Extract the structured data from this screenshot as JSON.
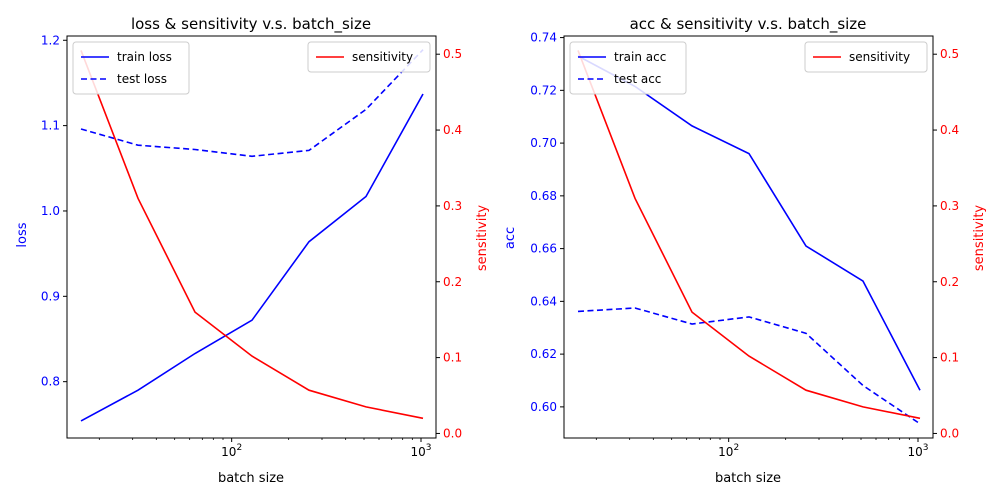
{
  "chart_data": [
    {
      "type": "line",
      "title": "loss & sensitivity v.s. batch_size",
      "xlabel": "batch size",
      "ylabel": "loss",
      "y2label": "sensitivity",
      "xscale": "log",
      "xlim": [
        13.5,
        1200
      ],
      "ylim": [
        0.734,
        1.205
      ],
      "y2lim": [
        -0.006,
        0.524
      ],
      "x": [
        16,
        32,
        64,
        128,
        256,
        512,
        1024
      ],
      "xticks": [
        {
          "value": 100,
          "base": "10",
          "exp": "2"
        },
        {
          "value": 1000,
          "base": "10",
          "exp": "3"
        }
      ],
      "yticks": [
        "0.8",
        "0.9",
        "1.0",
        "1.1",
        "1.2"
      ],
      "y2ticks": [
        "0.0",
        "0.1",
        "0.2",
        "0.3",
        "0.4",
        "0.5"
      ],
      "series": [
        {
          "name": "train loss",
          "axis": "left",
          "style": "solid",
          "color": "#0000ff",
          "values": [
            0.754,
            0.79,
            0.833,
            0.872,
            0.964,
            1.017,
            1.137
          ]
        },
        {
          "name": "test loss",
          "axis": "left",
          "style": "dashed",
          "color": "#0000ff",
          "values": [
            1.096,
            1.077,
            1.072,
            1.064,
            1.071,
            1.119,
            1.189
          ]
        },
        {
          "name": "sensitivity",
          "axis": "right",
          "style": "solid",
          "color": "#ff0000",
          "values": [
            0.505,
            0.31,
            0.16,
            0.102,
            0.057,
            0.035,
            0.02
          ]
        }
      ],
      "legend_left": "upper left",
      "legend_right": "upper right",
      "grid": false
    },
    {
      "type": "line",
      "title": "acc & sensitivity v.s. batch_size",
      "xlabel": "batch size",
      "ylabel": "acc",
      "y2label": "sensitivity",
      "xscale": "log",
      "xlim": [
        13.5,
        1200
      ],
      "ylim": [
        0.5882,
        0.7406
      ],
      "y2lim": [
        -0.006,
        0.524
      ],
      "x": [
        16,
        32,
        64,
        128,
        256,
        512,
        1024
      ],
      "xticks": [
        {
          "value": 100,
          "base": "10",
          "exp": "2"
        },
        {
          "value": 1000,
          "base": "10",
          "exp": "3"
        }
      ],
      "yticks": [
        "0.60",
        "0.62",
        "0.64",
        "0.66",
        "0.68",
        "0.70",
        "0.72",
        "0.74"
      ],
      "y2ticks": [
        "0.0",
        "0.1",
        "0.2",
        "0.3",
        "0.4",
        "0.5"
      ],
      "series": [
        {
          "name": "train acc",
          "axis": "left",
          "style": "solid",
          "color": "#0000ff",
          "values": [
            0.733,
            0.7215,
            0.7065,
            0.696,
            0.661,
            0.6477,
            0.6063
          ]
        },
        {
          "name": "test acc",
          "axis": "left",
          "style": "dashed",
          "color": "#0000ff",
          "values": [
            0.6362,
            0.6375,
            0.6314,
            0.6341,
            0.6279,
            0.6081,
            0.5936
          ]
        },
        {
          "name": "sensitivity",
          "axis": "right",
          "style": "solid",
          "color": "#ff0000",
          "values": [
            0.505,
            0.31,
            0.16,
            0.102,
            0.057,
            0.035,
            0.02
          ]
        }
      ],
      "legend_left": "upper left",
      "legend_right": "upper right",
      "grid": false
    }
  ]
}
